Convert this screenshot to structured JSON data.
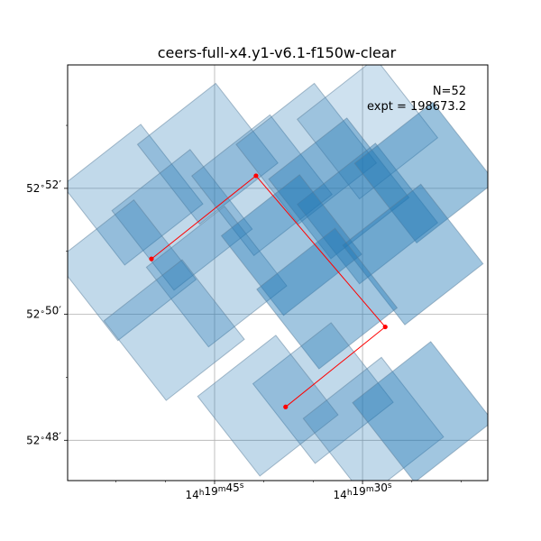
{
  "chart_data": {
    "type": "scatter",
    "title": "ceers-full-x4.y1-v6.1-f150w-clear",
    "annotations": [
      "N=52",
      "expt = 198673.2"
    ],
    "x_ticks": [
      {
        "label_h": "14",
        "label_m": "19",
        "label_s": "45",
        "x_sec": 45
      },
      {
        "label_h": "14",
        "label_m": "19",
        "label_s": "30",
        "x_sec": 30
      }
    ],
    "x_minor_ticks_sec": [
      55,
      50,
      40,
      35,
      25,
      20
    ],
    "y_ticks": [
      {
        "deg": "52",
        "min": "52",
        "y_arcmin": 52
      },
      {
        "deg": "52",
        "min": "50",
        "y_arcmin": 50
      },
      {
        "deg": "52",
        "min": "48",
        "y_arcmin": 48
      }
    ],
    "y_minor_ticks_arcmin": [
      53,
      51,
      49
    ],
    "xlim_sec": [
      59.9,
      17.3
    ],
    "ylim_arcmin": [
      47.36,
      53.96
    ],
    "grid": true,
    "fill_color": "#1f77b4",
    "path_color": "#ff0000",
    "path_points": [
      {
        "x": 51.4,
        "y": 50.88
      },
      {
        "x": 40.8,
        "y": 52.2
      },
      {
        "x": 27.7,
        "y": 49.8
      },
      {
        "x": 37.8,
        "y": 48.53
      }
    ],
    "footprints": [
      {
        "cx": 53.3,
        "cy": 51.9,
        "alpha": 0.28
      },
      {
        "cx": 45.7,
        "cy": 52.55,
        "alpha": 0.28
      },
      {
        "cx": 48.3,
        "cy": 51.5,
        "alpha": 0.28
      },
      {
        "cx": 40.2,
        "cy": 52.05,
        "alpha": 0.28
      },
      {
        "cx": 35.7,
        "cy": 52.55,
        "alpha": 0.28
      },
      {
        "cx": 29.5,
        "cy": 52.95,
        "alpha": 0.22
      },
      {
        "cx": 32.4,
        "cy": 52.0,
        "alpha": 0.38
      },
      {
        "cx": 29.5,
        "cy": 51.6,
        "alpha": 0.38
      },
      {
        "cx": 23.7,
        "cy": 52.25,
        "alpha": 0.45
      },
      {
        "cx": 54.0,
        "cy": 50.7,
        "alpha": 0.28
      },
      {
        "cx": 44.8,
        "cy": 50.6,
        "alpha": 0.28
      },
      {
        "cx": 37.2,
        "cy": 51.1,
        "alpha": 0.42
      },
      {
        "cx": 24.9,
        "cy": 50.95,
        "alpha": 0.42
      },
      {
        "cx": 49.1,
        "cy": 49.75,
        "alpha": 0.28
      },
      {
        "cx": 33.6,
        "cy": 50.25,
        "alpha": 0.42
      },
      {
        "cx": 34.0,
        "cy": 48.75,
        "alpha": 0.28
      },
      {
        "cx": 39.6,
        "cy": 48.55,
        "alpha": 0.28
      },
      {
        "cx": 28.9,
        "cy": 48.2,
        "alpha": 0.28
      },
      {
        "cx": 23.9,
        "cy": 48.45,
        "alpha": 0.42
      }
    ]
  }
}
